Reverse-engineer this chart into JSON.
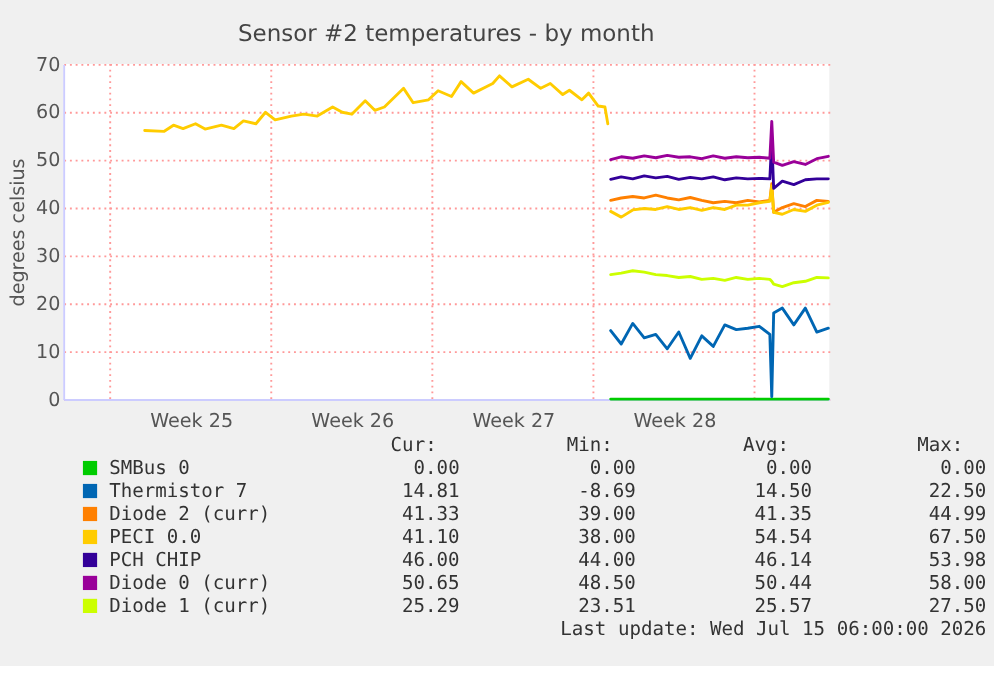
{
  "chart_data": {
    "type": "line",
    "title": "Sensor #2 temperatures - by month",
    "ylabel": "degrees celsius",
    "xlim": [
      "2026-06-11T23:00",
      "2026-07-15T06:00"
    ],
    "xticks": [
      {
        "value": "2026-06-14T00:00",
        "label": null
      },
      {
        "value": "2026-06-17T12:00",
        "label": "Week 25"
      },
      {
        "value": "2026-06-21T00:00",
        "label": null
      },
      {
        "value": "2026-06-24T12:00",
        "label": "Week 26"
      },
      {
        "value": "2026-06-28T00:00",
        "label": null
      },
      {
        "value": "2026-07-01T12:00",
        "label": "Week 27"
      },
      {
        "value": "2026-07-05T00:00",
        "label": null
      },
      {
        "value": "2026-07-08T12:00",
        "label": "Week 28"
      },
      {
        "value": "2026-07-12T00:00",
        "label": null
      }
    ],
    "ylim": [
      0,
      70
    ],
    "yticks": [
      0,
      10,
      20,
      30,
      40,
      50,
      60,
      70
    ],
    "grid": true,
    "legend": "bottom",
    "annotations": [
      "Cur:",
      "Min:",
      "Avg:",
      "Max:",
      "0.00",
      "0.00",
      "0.00",
      "0.00",
      "14.81",
      "-8.69",
      "14.50",
      "22.50",
      "41.33",
      "39.00",
      "41.35",
      "44.99",
      "41.10",
      "38.00",
      "54.54",
      "67.50",
      "46.00",
      "44.00",
      "46.14",
      "53.98",
      "50.65",
      "48.50",
      "50.44",
      "58.00",
      "25.29",
      "23.51",
      "25.57",
      "27.50",
      "Last update: Wed Jul 15 06:00:00 2026"
    ],
    "series": [
      {
        "name": "SMBus 0",
        "color": "#00cc00",
        "x": [
          "2026-07-05T18:00",
          "2026-07-06T05:00",
          "2026-07-06T17:00",
          "2026-07-07T05:00",
          "2026-07-07T17:00",
          "2026-07-08T05:00",
          "2026-07-08T17:00",
          "2026-07-09T05:00",
          "2026-07-09T17:00",
          "2026-07-10T05:00",
          "2026-07-10T17:00",
          "2026-07-11T05:00",
          "2026-07-11T17:00",
          "2026-07-12T05:00",
          "2026-07-12T16:00",
          "2026-07-12T18:00",
          "2026-07-12T20:00",
          "2026-07-13T05:00",
          "2026-07-13T17:00",
          "2026-07-14T05:00",
          "2026-07-14T17:00",
          "2026-07-15T05:00"
        ],
        "values": [
          0,
          0,
          0,
          0,
          0,
          0,
          0,
          0,
          0,
          0,
          0,
          0,
          0,
          0,
          0,
          0,
          0,
          0,
          0,
          0,
          0,
          0
        ]
      },
      {
        "name": "Thermistor 7",
        "color": "#0066b3",
        "x": [
          "2026-07-05T18:00",
          "2026-07-06T05:00",
          "2026-07-06T17:00",
          "2026-07-07T05:00",
          "2026-07-07T17:00",
          "2026-07-08T05:00",
          "2026-07-08T17:00",
          "2026-07-09T05:00",
          "2026-07-09T17:00",
          "2026-07-10T05:00",
          "2026-07-10T17:00",
          "2026-07-11T05:00",
          "2026-07-11T17:00",
          "2026-07-12T05:00",
          "2026-07-12T16:00",
          "2026-07-12T18:00",
          "2026-07-12T20:00",
          "2026-07-13T05:00",
          "2026-07-13T17:00",
          "2026-07-14T05:00",
          "2026-07-14T17:00",
          "2026-07-15T05:00"
        ],
        "values": [
          14.3,
          11.5,
          15.8,
          12.8,
          13.5,
          10.5,
          14.0,
          8.5,
          13.2,
          11.0,
          15.5,
          14.5,
          14.8,
          15.2,
          13.5,
          0.5,
          18.0,
          19.0,
          15.5,
          19.0,
          14.0,
          14.8
        ]
      },
      {
        "name": "Diode 2 (curr)",
        "color": "#ff8000",
        "x": [
          "2026-07-05T18:00",
          "2026-07-06T05:00",
          "2026-07-06T17:00",
          "2026-07-07T05:00",
          "2026-07-07T17:00",
          "2026-07-08T05:00",
          "2026-07-08T17:00",
          "2026-07-09T05:00",
          "2026-07-09T17:00",
          "2026-07-10T05:00",
          "2026-07-10T17:00",
          "2026-07-11T05:00",
          "2026-07-11T17:00",
          "2026-07-12T05:00",
          "2026-07-12T16:00",
          "2026-07-12T18:00",
          "2026-07-12T20:00",
          "2026-07-13T05:00",
          "2026-07-13T17:00",
          "2026-07-14T05:00",
          "2026-07-14T17:00",
          "2026-07-15T05:00"
        ],
        "values": [
          41.5,
          42.0,
          42.3,
          42.0,
          42.6,
          42.0,
          41.6,
          42.1,
          41.5,
          41.0,
          41.3,
          41.0,
          41.5,
          41.2,
          41.5,
          45.0,
          39.0,
          40.0,
          40.8,
          40.2,
          41.5,
          41.3
        ]
      },
      {
        "name": "PECI 0.0",
        "color": "#ffcc00",
        "x": [
          "2026-06-15T12:00",
          "2026-06-16T08:00",
          "2026-06-16T18:00",
          "2026-06-17T04:00",
          "2026-06-17T17:00",
          "2026-06-18T03:00",
          "2026-06-18T20:00",
          "2026-06-19T09:00",
          "2026-06-19T19:00",
          "2026-06-20T08:00",
          "2026-06-20T18:00",
          "2026-06-21T04:00",
          "2026-06-21T21:00",
          "2026-06-22T10:00",
          "2026-06-23T00:00",
          "2026-06-23T16:00",
          "2026-06-24T02:00",
          "2026-06-24T12:00",
          "2026-06-25T02:00",
          "2026-06-25T12:00",
          "2026-06-25T22:00",
          "2026-06-26T18:00",
          "2026-06-27T04:00",
          "2026-06-27T20:00",
          "2026-06-28T06:00",
          "2026-06-28T20:00",
          "2026-06-29T06:00",
          "2026-06-29T19:00",
          "2026-06-30T15:00",
          "2026-06-30T22:00",
          "2026-07-01T11:00",
          "2026-07-02T04:00",
          "2026-07-02T17:00",
          "2026-07-03T03:00",
          "2026-07-03T16:00",
          "2026-07-03T23:00",
          "2026-07-04T12:00",
          "2026-07-04T19:00",
          "2026-07-05T05:00",
          "2026-07-05T12:00",
          "2026-07-05T15:00",
          "2026-07-05T17:00",
          "2026-07-05T18:00",
          "2026-07-06T05:00",
          "2026-07-06T17:00",
          "2026-07-07T05:00",
          "2026-07-07T17:00",
          "2026-07-08T05:00",
          "2026-07-08T17:00",
          "2026-07-09T05:00",
          "2026-07-09T17:00",
          "2026-07-10T05:00",
          "2026-07-10T17:00",
          "2026-07-11T05:00",
          "2026-07-11T17:00",
          "2026-07-12T05:00",
          "2026-07-12T16:00",
          "2026-07-12T18:00",
          "2026-07-12T20:00",
          "2026-07-13T05:00",
          "2026-07-13T17:00",
          "2026-07-14T05:00",
          "2026-07-14T17:00",
          "2026-07-15T05:00"
        ],
        "values": [
          56.1,
          55.9,
          57.2,
          56.5,
          57.5,
          56.4,
          57.2,
          56.5,
          58.1,
          57.5,
          59.9,
          58.3,
          59.1,
          59.5,
          59.1,
          61.0,
          59.9,
          59.5,
          62.3,
          60.3,
          61.0,
          64.9,
          61.9,
          62.5,
          64.4,
          63.2,
          66.3,
          63.9,
          65.9,
          67.5,
          65.2,
          66.8,
          64.9,
          65.9,
          63.6,
          64.5,
          62.5,
          63.9,
          61.2,
          61.0,
          57.5,
          null,
          39.2,
          38.0,
          39.5,
          39.8,
          39.6,
          40.2,
          39.6,
          40.0,
          39.4,
          40.0,
          39.6,
          40.5,
          40.5,
          41.0,
          41.3,
          44.5,
          39.0,
          38.6,
          39.6,
          39.2,
          40.5,
          41.1
        ]
      },
      {
        "name": "PCH CHIP",
        "color": "#330099",
        "x": [
          "2026-07-05T18:00",
          "2026-07-06T05:00",
          "2026-07-06T17:00",
          "2026-07-07T05:00",
          "2026-07-07T17:00",
          "2026-07-08T05:00",
          "2026-07-08T17:00",
          "2026-07-09T05:00",
          "2026-07-09T17:00",
          "2026-07-10T05:00",
          "2026-07-10T17:00",
          "2026-07-11T05:00",
          "2026-07-11T17:00",
          "2026-07-12T05:00",
          "2026-07-12T16:00",
          "2026-07-12T18:00",
          "2026-07-12T20:00",
          "2026-07-13T05:00",
          "2026-07-13T17:00",
          "2026-07-14T05:00",
          "2026-07-14T17:00",
          "2026-07-15T05:00"
        ],
        "values": [
          45.9,
          46.4,
          46.0,
          46.6,
          46.2,
          46.5,
          45.9,
          46.3,
          46.0,
          46.4,
          45.8,
          46.2,
          46.0,
          46.1,
          46.0,
          54.0,
          44.0,
          45.5,
          44.8,
          45.8,
          46.0,
          46.0
        ]
      },
      {
        "name": "Diode 0 (curr)",
        "color": "#990099",
        "x": [
          "2026-07-05T18:00",
          "2026-07-06T05:00",
          "2026-07-06T17:00",
          "2026-07-07T05:00",
          "2026-07-07T17:00",
          "2026-07-08T05:00",
          "2026-07-08T17:00",
          "2026-07-09T05:00",
          "2026-07-09T17:00",
          "2026-07-10T05:00",
          "2026-07-10T17:00",
          "2026-07-11T05:00",
          "2026-07-11T17:00",
          "2026-07-12T05:00",
          "2026-07-12T16:00",
          "2026-07-12T18:00",
          "2026-07-12T20:00",
          "2026-07-13T05:00",
          "2026-07-13T17:00",
          "2026-07-14T05:00",
          "2026-07-14T17:00",
          "2026-07-15T05:00"
        ],
        "values": [
          50.0,
          50.6,
          50.3,
          50.8,
          50.4,
          50.9,
          50.5,
          50.6,
          50.2,
          50.8,
          50.3,
          50.6,
          50.4,
          50.5,
          50.3,
          58.0,
          49.5,
          48.8,
          49.6,
          49.0,
          50.2,
          50.7
        ]
      },
      {
        "name": "Diode 1 (curr)",
        "color": "#ccff00",
        "x": [
          "2026-07-05T18:00",
          "2026-07-06T05:00",
          "2026-07-06T17:00",
          "2026-07-07T05:00",
          "2026-07-07T17:00",
          "2026-07-08T05:00",
          "2026-07-08T17:00",
          "2026-07-09T05:00",
          "2026-07-09T17:00",
          "2026-07-10T05:00",
          "2026-07-10T17:00",
          "2026-07-11T05:00",
          "2026-07-11T17:00",
          "2026-07-12T05:00",
          "2026-07-12T16:00",
          "2026-07-12T18:00",
          "2026-07-12T20:00",
          "2026-07-13T05:00",
          "2026-07-13T17:00",
          "2026-07-14T05:00",
          "2026-07-14T17:00",
          "2026-07-15T05:00"
        ],
        "values": [
          26.0,
          26.3,
          26.8,
          26.5,
          26.0,
          25.8,
          25.4,
          25.6,
          25.0,
          25.2,
          24.8,
          25.4,
          25.0,
          25.2,
          25.0,
          24.6,
          24.0,
          23.5,
          24.3,
          24.6,
          25.4,
          25.3
        ]
      }
    ]
  }
}
